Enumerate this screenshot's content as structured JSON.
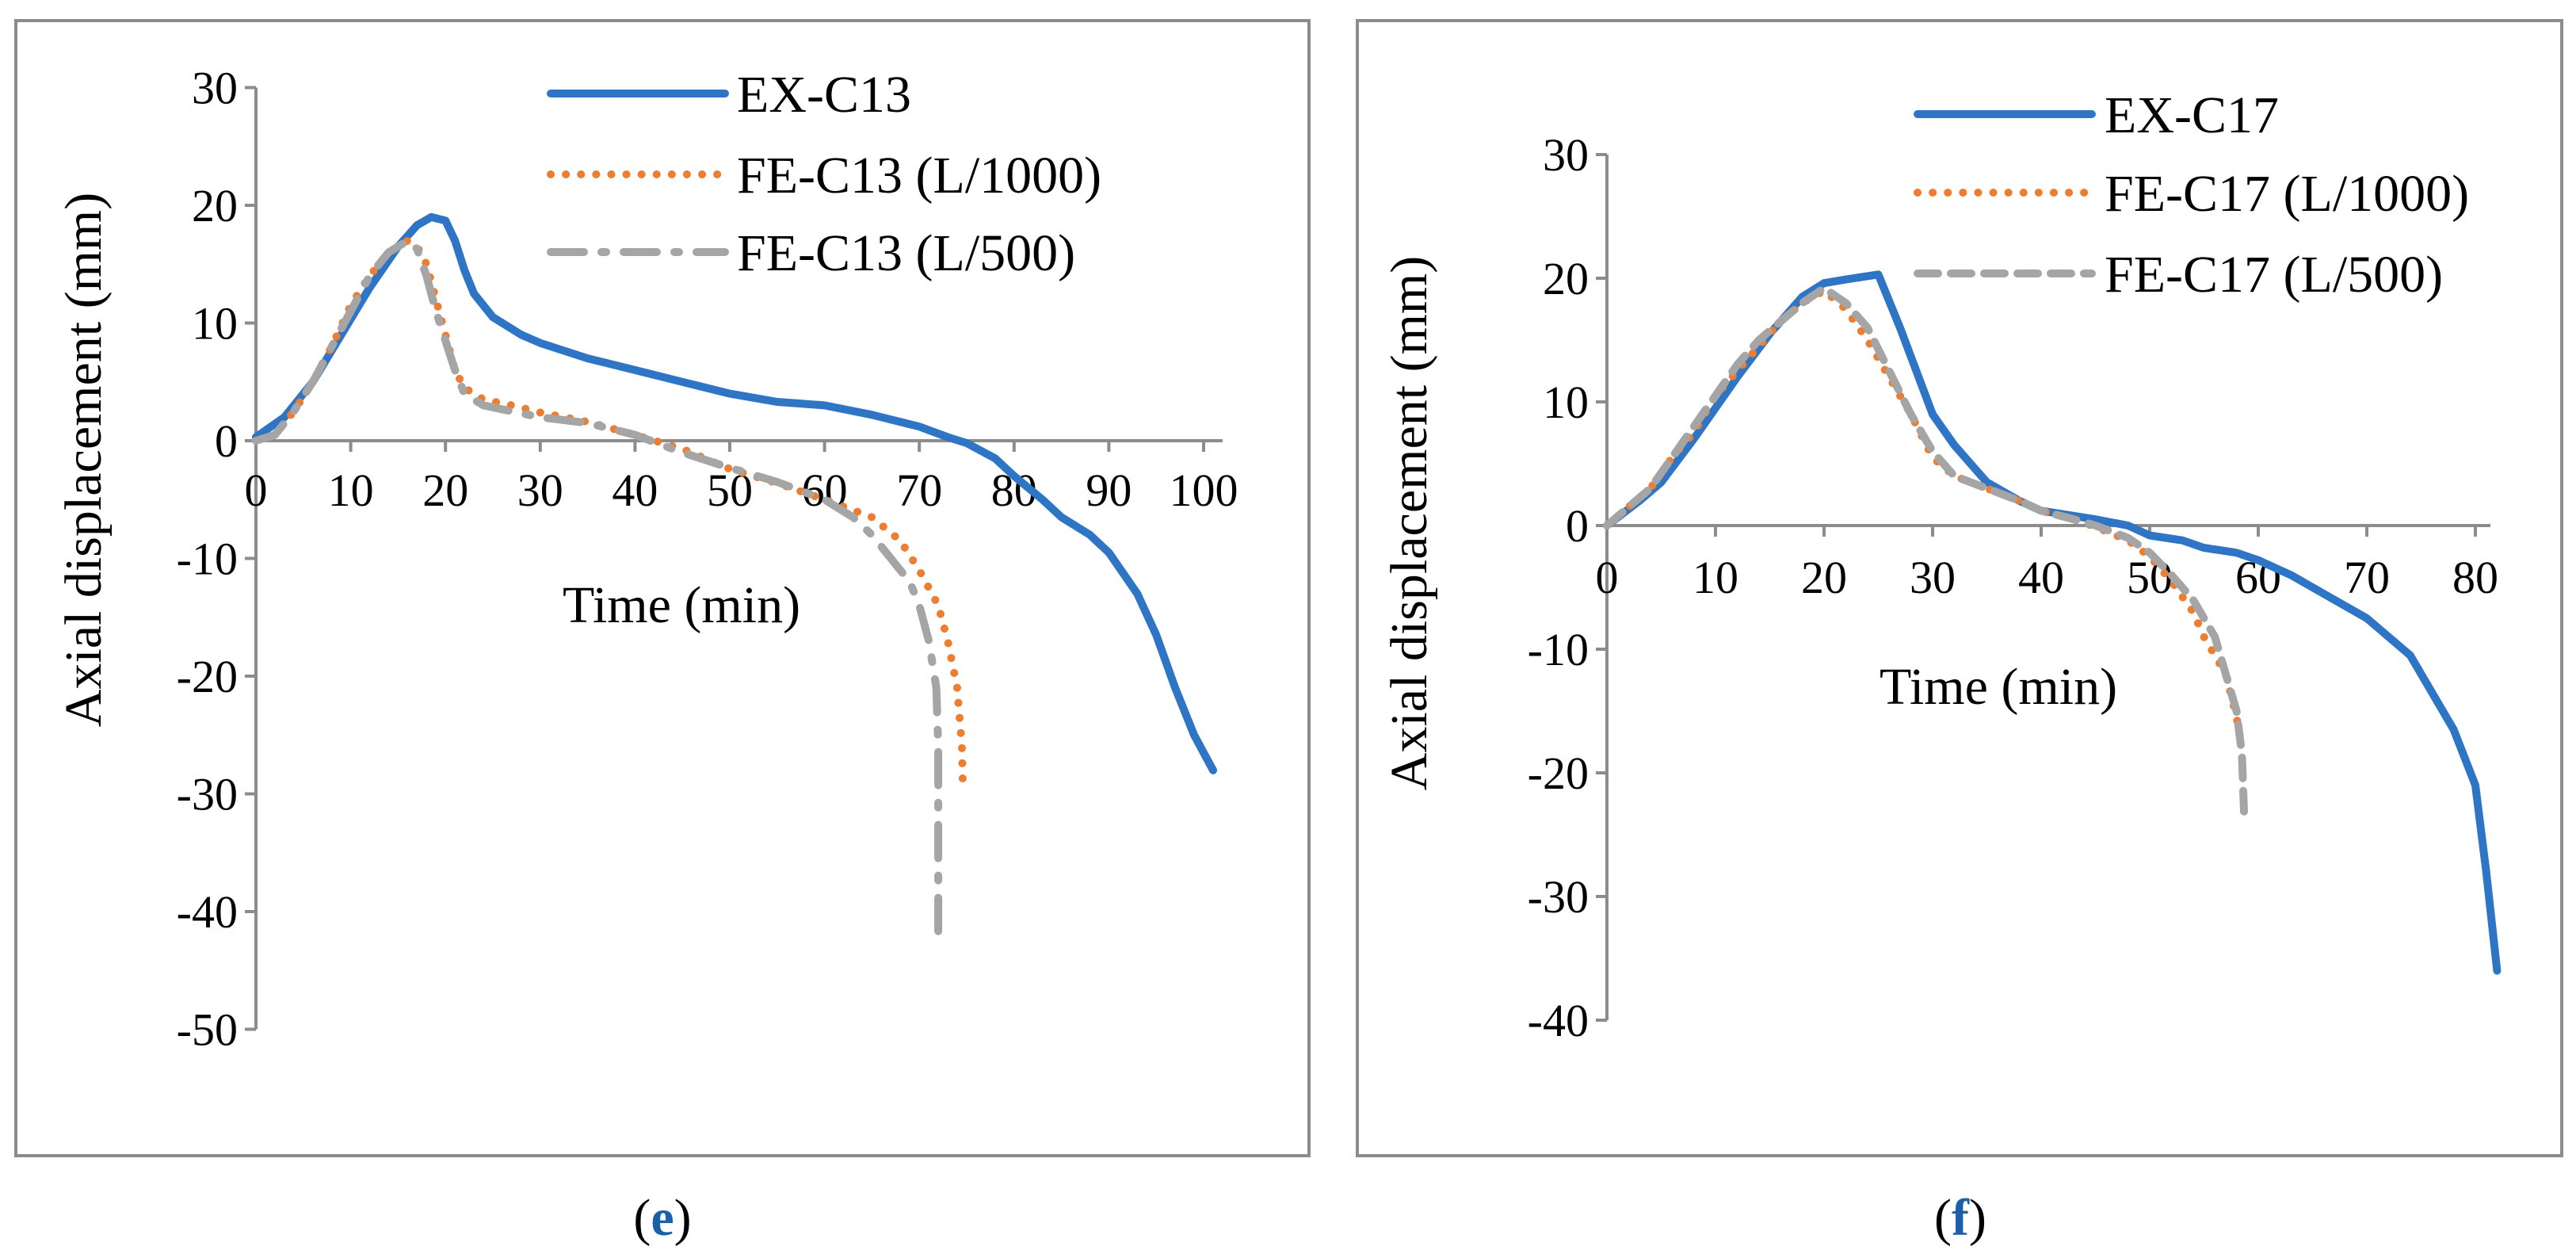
{
  "chart_data": [
    {
      "type": "line",
      "panel_label": "e",
      "xlabel": "Time (min)",
      "ylabel": "Axial displacement (mm)",
      "xlim": [
        0,
        102
      ],
      "ylim": [
        -50,
        30
      ],
      "xticks": [
        0,
        10,
        20,
        30,
        40,
        50,
        60,
        70,
        80,
        90,
        100
      ],
      "yticks": [
        30,
        20,
        10,
        0,
        -10,
        -20,
        -30,
        -40,
        -50
      ],
      "legend_position": "top-right",
      "series": [
        {
          "name": "EX-C13",
          "color": "#2e75c6",
          "style": "solid",
          "points": [
            [
              0,
              0.3
            ],
            [
              3,
              2
            ],
            [
              6,
              5
            ],
            [
              9,
              9
            ],
            [
              12,
              13
            ],
            [
              15,
              16.5
            ],
            [
              17,
              18.3
            ],
            [
              18.5,
              19
            ],
            [
              20,
              18.7
            ],
            [
              21,
              17
            ],
            [
              22,
              14.5
            ],
            [
              23,
              12.5
            ],
            [
              25,
              10.5
            ],
            [
              28,
              9
            ],
            [
              30,
              8.3
            ],
            [
              35,
              7
            ],
            [
              40,
              6
            ],
            [
              45,
              5
            ],
            [
              50,
              4
            ],
            [
              55,
              3.3
            ],
            [
              60,
              3
            ],
            [
              65,
              2.2
            ],
            [
              70,
              1.2
            ],
            [
              73,
              0.3
            ],
            [
              75,
              -0.2
            ],
            [
              78,
              -1.5
            ],
            [
              80,
              -3
            ],
            [
              83,
              -5
            ],
            [
              85,
              -6.5
            ],
            [
              88,
              -8
            ],
            [
              90,
              -9.5
            ],
            [
              93,
              -13
            ],
            [
              95,
              -16.5
            ],
            [
              97,
              -21
            ],
            [
              99,
              -25
            ],
            [
              101,
              -28
            ]
          ]
        },
        {
          "name": "FE-C13 (L/1000)",
          "color": "#ed7d31",
          "style": "dotted",
          "points": [
            [
              0,
              0
            ],
            [
              2,
              0.5
            ],
            [
              4,
              2.5
            ],
            [
              6,
              5
            ],
            [
              8,
              8
            ],
            [
              10,
              11.5
            ],
            [
              12,
              14
            ],
            [
              14,
              16
            ],
            [
              16,
              17
            ],
            [
              17,
              16.5
            ],
            [
              18,
              15
            ],
            [
              19,
              12
            ],
            [
              20,
              9
            ],
            [
              21,
              6
            ],
            [
              22,
              4.5
            ],
            [
              24,
              3.5
            ],
            [
              27,
              3
            ],
            [
              30,
              2.4
            ],
            [
              35,
              1.6
            ],
            [
              40,
              0.5
            ],
            [
              45,
              -0.7
            ],
            [
              50,
              -2.4
            ],
            [
              55,
              -3.6
            ],
            [
              60,
              -5
            ],
            [
              65,
              -6.5
            ],
            [
              68,
              -8.5
            ],
            [
              70,
              -11
            ],
            [
              72,
              -14
            ],
            [
              73,
              -17
            ],
            [
              74,
              -21
            ],
            [
              74.5,
              -26
            ],
            [
              74.6,
              -29.5
            ]
          ]
        },
        {
          "name": "FE-C13 (L/500)",
          "color": "#a5a5a5",
          "style": "dashdot",
          "points": [
            [
              0,
              0
            ],
            [
              2,
              0.5
            ],
            [
              4,
              2.5
            ],
            [
              6,
              5
            ],
            [
              8,
              8
            ],
            [
              10,
              11
            ],
            [
              12,
              14
            ],
            [
              14,
              16
            ],
            [
              16,
              17
            ],
            [
              17,
              16.3
            ],
            [
              18,
              14
            ],
            [
              19,
              11
            ],
            [
              20,
              8.5
            ],
            [
              21,
              6
            ],
            [
              22,
              4
            ],
            [
              24,
              3
            ],
            [
              27,
              2.5
            ],
            [
              30,
              2
            ],
            [
              35,
              1.5
            ],
            [
              40,
              0.5
            ],
            [
              45,
              -1
            ],
            [
              50,
              -2.3
            ],
            [
              55,
              -3.5
            ],
            [
              60,
              -5
            ],
            [
              63,
              -6.5
            ],
            [
              65,
              -8
            ],
            [
              67,
              -10
            ],
            [
              69,
              -12
            ],
            [
              70,
              -14
            ],
            [
              71,
              -17
            ],
            [
              71.8,
              -21
            ],
            [
              72,
              -26
            ],
            [
              72,
              -32
            ],
            [
              72,
              -38
            ],
            [
              72,
              -43
            ]
          ]
        }
      ]
    },
    {
      "type": "line",
      "panel_label": "f",
      "xlabel": "Time (min)",
      "ylabel": "Axial displacement (mm)",
      "xlim": [
        0,
        85
      ],
      "ylim": [
        -40,
        30
      ],
      "xticks": [
        0,
        10,
        20,
        30,
        40,
        50,
        60,
        70,
        80
      ],
      "yticks": [
        30,
        20,
        10,
        0,
        -10,
        -20,
        -30,
        -40
      ],
      "legend_position": "top-right",
      "series": [
        {
          "name": "EX-C17",
          "color": "#2e75c6",
          "style": "solid",
          "points": [
            [
              0,
              0
            ],
            [
              3,
              2
            ],
            [
              5,
              3.5
            ],
            [
              8,
              7
            ],
            [
              10,
              9.5
            ],
            [
              12,
              12
            ],
            [
              15,
              15.5
            ],
            [
              18,
              18.5
            ],
            [
              20,
              19.6
            ],
            [
              22,
              19.9
            ],
            [
              25,
              20.3
            ],
            [
              27,
              16
            ],
            [
              30,
              9
            ],
            [
              32,
              6.5
            ],
            [
              35,
              3.5
            ],
            [
              38,
              2
            ],
            [
              40,
              1.2
            ],
            [
              45,
              0.5
            ],
            [
              48,
              0
            ],
            [
              50,
              -0.8
            ],
            [
              53,
              -1.2
            ],
            [
              55,
              -1.8
            ],
            [
              58,
              -2.2
            ],
            [
              60,
              -2.8
            ],
            [
              63,
              -4
            ],
            [
              66,
              -5.5
            ],
            [
              70,
              -7.5
            ],
            [
              74,
              -10.5
            ],
            [
              76,
              -13.5
            ],
            [
              78,
              -16.5
            ],
            [
              80,
              -21
            ],
            [
              81,
              -28
            ],
            [
              82,
              -36
            ]
          ]
        },
        {
          "name": "FE-C17 (L/1000)",
          "color": "#ed7d31",
          "style": "dotted",
          "points": [
            [
              0,
              0
            ],
            [
              2,
              1.5
            ],
            [
              4,
              3
            ],
            [
              6,
              5.5
            ],
            [
              8,
              7.5
            ],
            [
              10,
              10.5
            ],
            [
              12,
              12.5
            ],
            [
              14,
              14.5
            ],
            [
              16,
              16.5
            ],
            [
              18,
              18
            ],
            [
              20,
              19
            ],
            [
              22,
              17.5
            ],
            [
              24,
              15
            ],
            [
              26,
              12
            ],
            [
              28,
              9
            ],
            [
              30,
              5.5
            ],
            [
              32,
              4
            ],
            [
              35,
              3
            ],
            [
              38,
              2
            ],
            [
              40,
              1.2
            ],
            [
              43,
              0.5
            ],
            [
              45,
              -0.1
            ],
            [
              48,
              -1.2
            ],
            [
              50,
              -2.5
            ],
            [
              52,
              -4.5
            ],
            [
              54,
              -7
            ],
            [
              55,
              -9
            ],
            [
              57,
              -12
            ],
            [
              58,
              -15.5
            ],
            [
              58.5,
              -18
            ]
          ]
        },
        {
          "name": "FE-C17 (L/500)",
          "color": "#a5a5a5",
          "style": "dashed",
          "points": [
            [
              0,
              0
            ],
            [
              2,
              1.5
            ],
            [
              4,
              3
            ],
            [
              6,
              5.5
            ],
            [
              8,
              8
            ],
            [
              10,
              10.5
            ],
            [
              12,
              13
            ],
            [
              14,
              15
            ],
            [
              16,
              16.5
            ],
            [
              18,
              18
            ],
            [
              20,
              19.2
            ],
            [
              22,
              18
            ],
            [
              24,
              16
            ],
            [
              26,
              12.5
            ],
            [
              28,
              9
            ],
            [
              30,
              6
            ],
            [
              32,
              4
            ],
            [
              35,
              3
            ],
            [
              38,
              2
            ],
            [
              40,
              1.2
            ],
            [
              43,
              0.5
            ],
            [
              45,
              0
            ],
            [
              48,
              -1
            ],
            [
              50,
              -2.2
            ],
            [
              52,
              -4
            ],
            [
              54,
              -6
            ],
            [
              56,
              -9
            ],
            [
              57,
              -12
            ],
            [
              58,
              -15
            ],
            [
              58.5,
              -18.5
            ],
            [
              58.7,
              -23.5
            ]
          ]
        }
      ]
    }
  ]
}
